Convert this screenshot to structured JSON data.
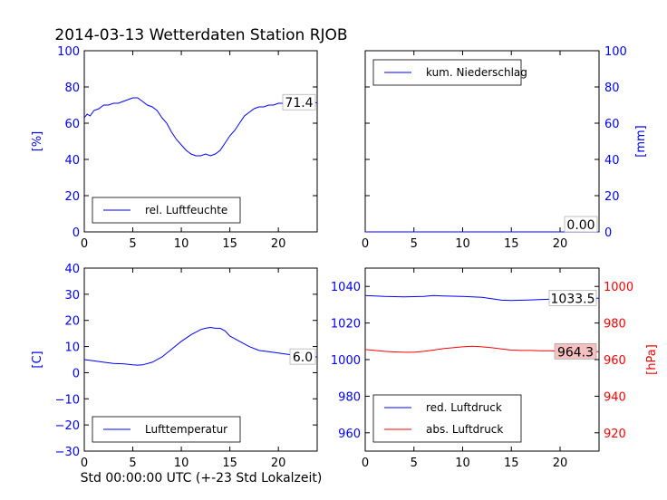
{
  "title": "2014-03-13 Wetterdaten Station RJOB",
  "xlabel": "Std 00:00:00 UTC (+-23 Std Lokalzeit)",
  "colors": {
    "blue": "#0000ff",
    "red": "#ff0000",
    "black": "#000000",
    "red_box": "#f4c0c0"
  },
  "chart_data": [
    {
      "type": "line",
      "panel": "top-left",
      "ylabel": "[%]",
      "xlim": [
        0,
        24
      ],
      "ylim": [
        0,
        100
      ],
      "xticks": [
        "0",
        "5",
        "10",
        "15",
        "20"
      ],
      "yticks": [
        "0",
        "20",
        "40",
        "60",
        "80",
        "100"
      ],
      "legend": {
        "placement": "lower-left",
        "entries": [
          "rel. Luftfeuchte"
        ]
      },
      "latest_label": "71.4",
      "series": [
        {
          "name": "rel. Luftfeuchte",
          "color": "#0000ff",
          "x": [
            0,
            0.3,
            0.6,
            1,
            1.5,
            2,
            2.5,
            3,
            3.5,
            4,
            4.5,
            5,
            5.5,
            6,
            6.5,
            7,
            7.5,
            8,
            8.5,
            9,
            9.5,
            10,
            10.5,
            11,
            11.5,
            12,
            12.5,
            13,
            13.5,
            14,
            14.5,
            15,
            15.5,
            16,
            16.5,
            17,
            17.5,
            18,
            18.5,
            19,
            19.5,
            20,
            20.5,
            21,
            21.5,
            22,
            22.5,
            23,
            23.5,
            24
          ],
          "values": [
            63,
            65,
            64,
            67,
            68,
            70,
            70,
            71,
            71,
            72,
            73,
            74,
            74,
            72,
            70,
            69,
            67,
            63,
            60,
            55,
            51,
            48,
            45,
            43,
            42,
            42,
            43,
            42,
            43,
            45,
            49,
            53,
            56,
            60,
            64,
            66,
            68,
            69,
            69,
            70,
            70,
            71,
            71,
            72,
            71,
            70,
            69,
            70,
            71,
            71.4
          ]
        }
      ]
    },
    {
      "type": "line",
      "panel": "top-right",
      "ylabel": "[mm]",
      "xlim": [
        0,
        24
      ],
      "ylim": [
        0,
        100
      ],
      "xticks": [
        "0",
        "5",
        "10",
        "15",
        "20"
      ],
      "yticks": [
        "0",
        "20",
        "40",
        "60",
        "80",
        "100"
      ],
      "legend": {
        "placement": "top-left",
        "entries": [
          "kum. Niederschlag"
        ]
      },
      "latest_label": "0.00",
      "series": [
        {
          "name": "kum. Niederschlag",
          "color": "#0000ff",
          "x": [
            0,
            24
          ],
          "values": [
            0,
            0
          ]
        }
      ]
    },
    {
      "type": "line",
      "panel": "bottom-left",
      "ylabel": "[C]",
      "xlim": [
        0,
        24
      ],
      "ylim": [
        -30,
        40
      ],
      "xticks": [
        "0",
        "5",
        "10",
        "15",
        "20"
      ],
      "yticks": [
        "−30",
        "−20",
        "−10",
        "0",
        "10",
        "20",
        "30",
        "40"
      ],
      "legend": {
        "placement": "lower-left",
        "entries": [
          "Lufttemperatur"
        ]
      },
      "latest_label": "6.0",
      "series": [
        {
          "name": "Lufttemperatur",
          "color": "#0000ff",
          "x": [
            0,
            1,
            2,
            3,
            4,
            5,
            5.5,
            6,
            7,
            8,
            9,
            10,
            11,
            12,
            12.5,
            13,
            13.5,
            14,
            14.5,
            15,
            16,
            17,
            18,
            19,
            20,
            21,
            22,
            23,
            24
          ],
          "values": [
            5,
            4.5,
            4,
            3.5,
            3.4,
            3,
            2.9,
            3,
            4,
            6,
            9,
            12,
            14.5,
            16.5,
            17,
            17.3,
            17,
            17,
            16,
            14,
            12,
            10,
            8.5,
            8,
            7.5,
            7,
            6.5,
            6.2,
            6.0
          ]
        }
      ]
    },
    {
      "type": "line",
      "panel": "bottom-right",
      "ylabel": "[hPa]",
      "xlim": [
        0,
        24
      ],
      "ylim_left": [
        950,
        1050
      ],
      "ylim_right": [
        910,
        1010
      ],
      "xticks": [
        "0",
        "5",
        "10",
        "15",
        "20"
      ],
      "yticks_left": [
        "960",
        "980",
        "1000",
        "1020",
        "1040"
      ],
      "yticks_right": [
        "920",
        "940",
        "960",
        "980",
        "1000"
      ],
      "legend": {
        "placement": "lower-left",
        "entries": [
          "red. Luftdruck",
          "abs. Luftdruck"
        ]
      },
      "latest_labels": [
        "1033.5",
        "964.3"
      ],
      "series": [
        {
          "name": "red. Luftdruck",
          "color": "#0000ff",
          "axis": "left",
          "x": [
            0,
            2,
            4,
            6,
            7,
            8,
            10,
            12,
            14,
            15,
            17,
            19,
            21,
            22,
            23,
            24
          ],
          "values": [
            1035,
            1034.5,
            1034.3,
            1034.5,
            1035,
            1034.8,
            1034.5,
            1034,
            1032.5,
            1032.3,
            1032.6,
            1033,
            1033.3,
            1033.4,
            1033.5,
            1033.5
          ]
        },
        {
          "name": "abs. Luftdruck",
          "color": "#ff0000",
          "axis": "right",
          "x": [
            0,
            1,
            2,
            3,
            4,
            5,
            6,
            7,
            8,
            9,
            10,
            11,
            12,
            13,
            14,
            15,
            16,
            17,
            18,
            19,
            20,
            21,
            22,
            23,
            24
          ],
          "values": [
            965.5,
            965,
            964.5,
            964.2,
            964,
            964,
            964.5,
            965.2,
            966,
            966.5,
            967,
            967.3,
            967,
            966.5,
            965.8,
            965.2,
            965,
            965,
            964.8,
            964.8,
            964.6,
            964.5,
            964.4,
            964.3,
            964.3
          ]
        }
      ]
    }
  ]
}
